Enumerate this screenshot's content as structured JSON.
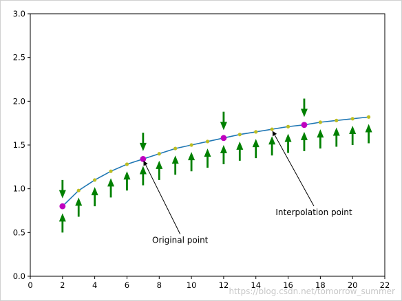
{
  "chart_data": {
    "type": "line",
    "title": "",
    "xlabel": "",
    "ylabel": "",
    "xlim": [
      0,
      22
    ],
    "ylim": [
      0,
      3.0
    ],
    "xticks": [
      0,
      2,
      4,
      6,
      8,
      10,
      12,
      14,
      16,
      18,
      20,
      22
    ],
    "yticks": [
      0.0,
      0.5,
      1.0,
      1.5,
      2.0,
      2.5,
      3.0
    ],
    "ytick_labels": [
      "0.0",
      "0.5",
      "1.0",
      "1.5",
      "2.0",
      "2.5",
      "3.0"
    ],
    "grid": false,
    "curve": {
      "color": "#1f77b4",
      "x": [
        2,
        3,
        4,
        5,
        6,
        7,
        8,
        9,
        10,
        11,
        12,
        13,
        14,
        15,
        16,
        17,
        18,
        19,
        20,
        21
      ],
      "y": [
        0.8,
        0.98,
        1.1,
        1.2,
        1.28,
        1.34,
        1.4,
        1.46,
        1.5,
        1.54,
        1.58,
        1.62,
        1.65,
        1.68,
        1.71,
        1.73,
        1.76,
        1.78,
        1.8,
        1.82
      ]
    },
    "interpolation_points": {
      "color": "#bcbd22",
      "x": [
        3,
        4,
        5,
        6,
        8,
        9,
        10,
        11,
        13,
        14,
        15,
        16,
        18,
        19,
        20,
        21
      ],
      "y": [
        0.98,
        1.1,
        1.2,
        1.28,
        1.4,
        1.46,
        1.5,
        1.54,
        1.62,
        1.65,
        1.68,
        1.71,
        1.76,
        1.78,
        1.8,
        1.82
      ]
    },
    "original_points": {
      "color": "#bf00bf",
      "x": [
        2,
        7,
        12,
        17
      ],
      "y": [
        0.8,
        1.34,
        1.58,
        1.73
      ]
    },
    "arrows_down": {
      "color": "#008000",
      "x": [
        2,
        7,
        12,
        17
      ],
      "y_top": [
        1.1,
        1.64,
        1.88,
        2.03
      ],
      "y_tip": [
        0.89,
        1.43,
        1.67,
        1.82
      ]
    },
    "arrows_up": {
      "color": "#008000",
      "x": [
        2,
        3,
        4,
        5,
        6,
        7,
        8,
        9,
        10,
        11,
        12,
        13,
        14,
        15,
        16,
        17,
        18,
        19,
        20,
        21
      ],
      "y_base": [
        0.5,
        0.68,
        0.8,
        0.9,
        0.98,
        1.04,
        1.1,
        1.16,
        1.2,
        1.24,
        1.28,
        1.32,
        1.35,
        1.38,
        1.41,
        1.43,
        1.46,
        1.48,
        1.5,
        1.52
      ],
      "y_tip": [
        0.72,
        0.9,
        1.02,
        1.12,
        1.2,
        1.26,
        1.32,
        1.38,
        1.42,
        1.46,
        1.5,
        1.54,
        1.57,
        1.6,
        1.63,
        1.65,
        1.68,
        1.7,
        1.72,
        1.74
      ]
    },
    "annotations": [
      {
        "text": "Original point",
        "text_x": 9.3,
        "text_y": 0.38,
        "point_x": 7,
        "point_y": 1.34
      },
      {
        "text": "Interpolation point",
        "text_x": 17.6,
        "text_y": 0.7,
        "point_x": 15,
        "point_y": 1.68
      }
    ]
  },
  "watermark": "https://blog.csdn.net/tomorrow_summer"
}
